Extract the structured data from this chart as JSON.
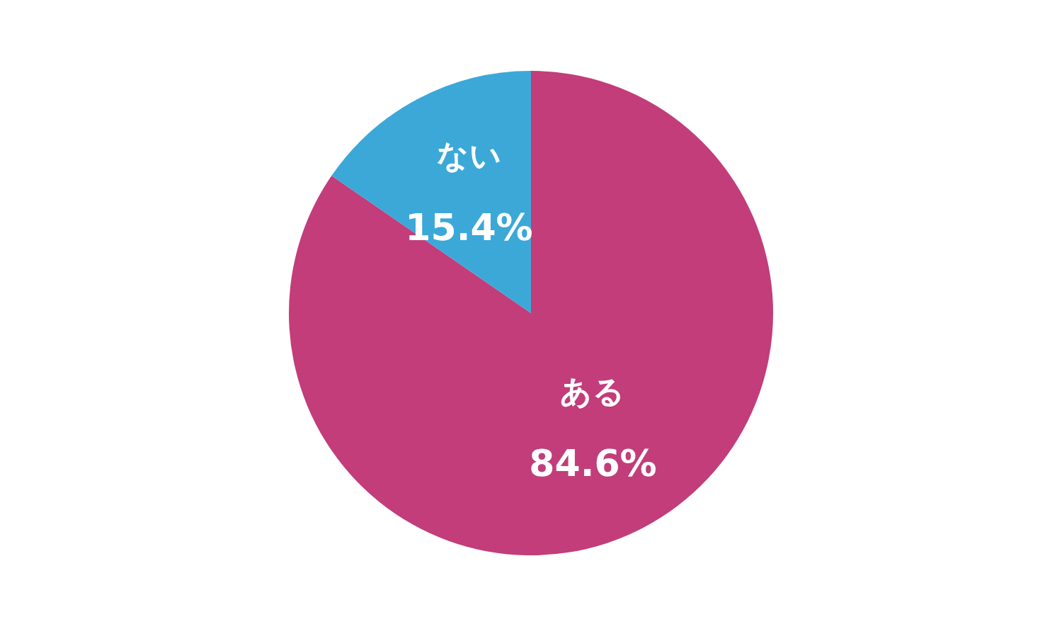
{
  "chart_data": {
    "type": "pie",
    "categories": [
      "ある",
      "ない"
    ],
    "values": [
      84.6,
      15.4
    ],
    "colors": [
      "#c23d7a",
      "#3ba8d8"
    ],
    "value_labels": [
      "84.6%",
      "15.4%"
    ],
    "legend": false
  }
}
